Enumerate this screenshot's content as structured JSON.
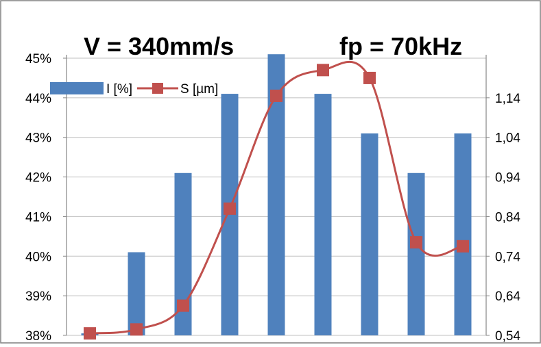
{
  "chart_data": {
    "type": "bar",
    "title_left": "V = 340mm/s",
    "title_right": "fp = 70kHz",
    "colors": {
      "bar": "#4f81bd",
      "line": "#c0504d"
    },
    "y_left": {
      "ticks": [
        "45%",
        "44%",
        "43%",
        "42%",
        "41%",
        "40%",
        "39%",
        "38%"
      ],
      "min": 38,
      "max": 45
    },
    "y_right": {
      "ticks": [
        "1,14",
        "1,04",
        "0,94",
        "0,84",
        "0,74",
        "0,64",
        "0,54"
      ],
      "min": 0.54,
      "max": 1.24
    },
    "legend_position": "top-left",
    "series": [
      {
        "name": "I [%]",
        "kind": "bar",
        "axis": "left",
        "values": [
          38.05,
          40.1,
          42.1,
          44.1,
          45.1,
          44.1,
          43.1,
          42.1,
          43.1
        ]
      },
      {
        "name": "S [µm]",
        "kind": "line",
        "axis": "right",
        "values": [
          0.545,
          0.555,
          0.615,
          0.86,
          1.145,
          1.21,
          1.19,
          0.775,
          0.765
        ]
      }
    ]
  }
}
